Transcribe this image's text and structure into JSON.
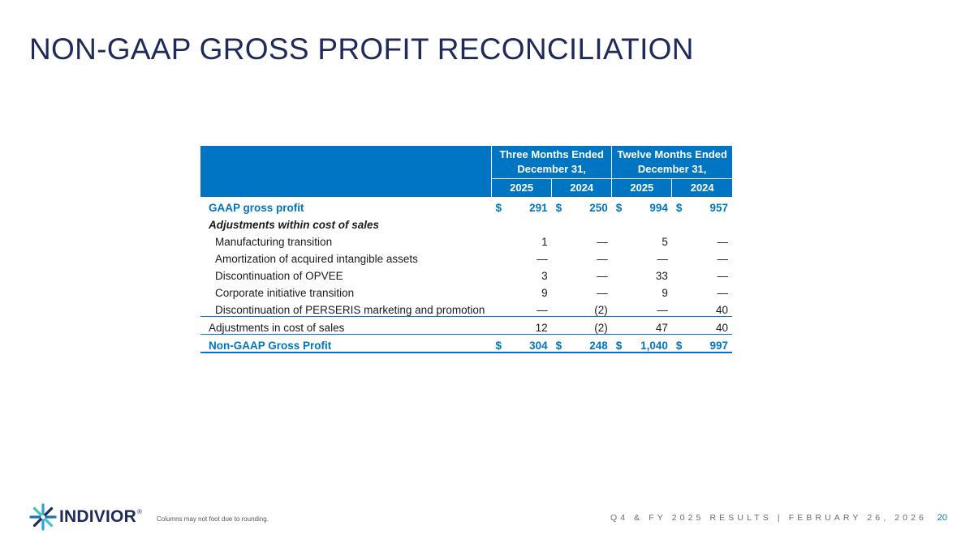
{
  "slide": {
    "title": "NON-GAAP GROSS PROFIT RECONCILIATION",
    "footnote": "Columns may not foot due to rounding.",
    "footer": "Q4 & FY 2025 RESULTS | FEBRUARY 26, 2026",
    "page_number": "20",
    "brand": {
      "name": "INDIVIOR",
      "reg": "®",
      "logo_icon": "starburst-icon",
      "primary_color": "#0075c2",
      "navy_color": "#1f2a5c"
    }
  },
  "table": {
    "group_headers": [
      "Three Months Ended December 31,",
      "Twelve Months Ended December 31,"
    ],
    "years": [
      "2025",
      "2024",
      "2025",
      "2024"
    ],
    "currency": "$",
    "rows": [
      {
        "label": "GAAP gross profit",
        "values": [
          "291",
          "250",
          "994",
          "957"
        ]
      },
      {
        "label": "Adjustments within cost of sales"
      },
      {
        "label": "Manufacturing transition",
        "values": [
          "1",
          "—",
          "5",
          "—"
        ]
      },
      {
        "label": "Amortization of acquired intangible assets",
        "values": [
          "—",
          "—",
          "—",
          "—"
        ]
      },
      {
        "label": "Discontinuation of OPVEE",
        "values": [
          "3",
          "—",
          "33",
          "—"
        ]
      },
      {
        "label": "Corporate initiative transition",
        "values": [
          "9",
          "—",
          "9",
          "—"
        ]
      },
      {
        "label": "Discontinuation of PERSERIS marketing and promotion",
        "values": [
          "—",
          "(2)",
          "—",
          "40"
        ]
      },
      {
        "label": "Adjustments in cost of sales",
        "values": [
          "12",
          "(2)",
          "47",
          "40"
        ]
      },
      {
        "label": "Non-GAAP Gross Profit",
        "values": [
          "304",
          "248",
          "1,040",
          "997"
        ]
      }
    ]
  }
}
